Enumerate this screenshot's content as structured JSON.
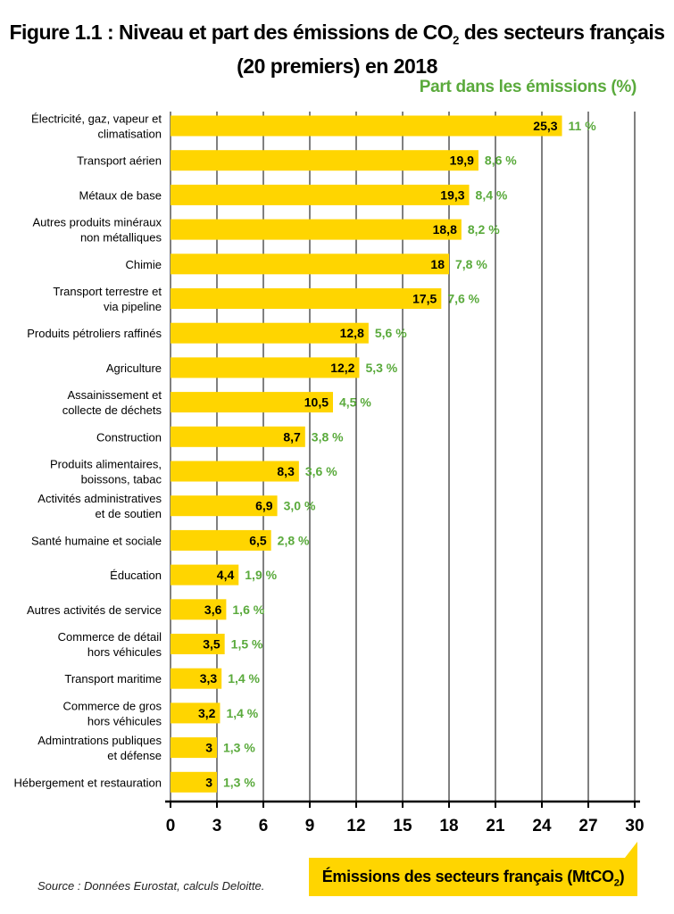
{
  "title": {
    "line1_before_sub": "Figure 1.1 : Niveau et part des émissions de CO",
    "line1_sub": "2",
    "line1_after_sub": " des secteurs français",
    "line2": "(20 premiers) en 2018"
  },
  "share_heading": "Part dans les émissions (%)",
  "source": "Source : Données Eurostat, calculs Deloitte.",
  "x_axis_label": {
    "before_sub": "Émissions des secteurs français (MtCO",
    "sub": "2",
    "after_sub": ")"
  },
  "colors": {
    "bar": "#ffd500",
    "share_text": "#5aaa3c",
    "grid": "#000000"
  },
  "chart_data": {
    "type": "bar",
    "orientation": "horizontal",
    "xlim": [
      0,
      30
    ],
    "xticks": [
      "0",
      "3",
      "6",
      "9",
      "12",
      "15",
      "18",
      "21",
      "24",
      "27",
      "30"
    ],
    "grid": "vertical",
    "categories": [
      [
        "Électricité, gaz, vapeur et",
        "climatisation"
      ],
      [
        "Transport aérien"
      ],
      [
        "Métaux de base"
      ],
      [
        "Autres produits minéraux",
        "non métalliques"
      ],
      [
        "Chimie"
      ],
      [
        "Transport terrestre et",
        "via pipeline"
      ],
      [
        "Produits pétroliers raffinés"
      ],
      [
        "Agriculture"
      ],
      [
        "Assainissement et",
        "collecte de déchets"
      ],
      [
        "Construction"
      ],
      [
        "Produits alimentaires,",
        "boissons, tabac"
      ],
      [
        "Activités administratives",
        "et de soutien"
      ],
      [
        "Santé humaine et sociale"
      ],
      [
        "Éducation"
      ],
      [
        "Autres activités de service"
      ],
      [
        "Commerce de détail",
        "hors véhicules"
      ],
      [
        "Transport maritime"
      ],
      [
        "Commerce de gros",
        "hors véhicules"
      ],
      [
        "Admintrations publiques",
        "et défense"
      ],
      [
        "Hébergement et restauration"
      ]
    ],
    "values": [
      25.3,
      19.9,
      19.3,
      18.8,
      18,
      17.5,
      12.8,
      12.2,
      10.5,
      8.7,
      8.3,
      6.9,
      6.5,
      4.4,
      3.6,
      3.5,
      3.3,
      3.2,
      3,
      3
    ],
    "value_labels": [
      "25,3",
      "19,9",
      "19,3",
      "18,8",
      "18",
      "17,5",
      "12,8",
      "12,2",
      "10,5",
      "8,7",
      "8,3",
      "6,9",
      "6,5",
      "4,4",
      "3,6",
      "3,5",
      "3,3",
      "3,2",
      "3",
      "3"
    ],
    "share_labels": [
      "11 %",
      "8,6 %",
      "8,4 %",
      "8,2 %",
      "7,8 %",
      "7,6 %",
      "5,6 %",
      "5,3 %",
      "4,5 %",
      "3,8 %",
      "3,6 %",
      "3,0 %",
      "2,8 %",
      "1,9 %",
      "1,6 %",
      "1,5 %",
      "1,4 %",
      "1,4 %",
      "1,3 %",
      "1,3 %"
    ]
  }
}
